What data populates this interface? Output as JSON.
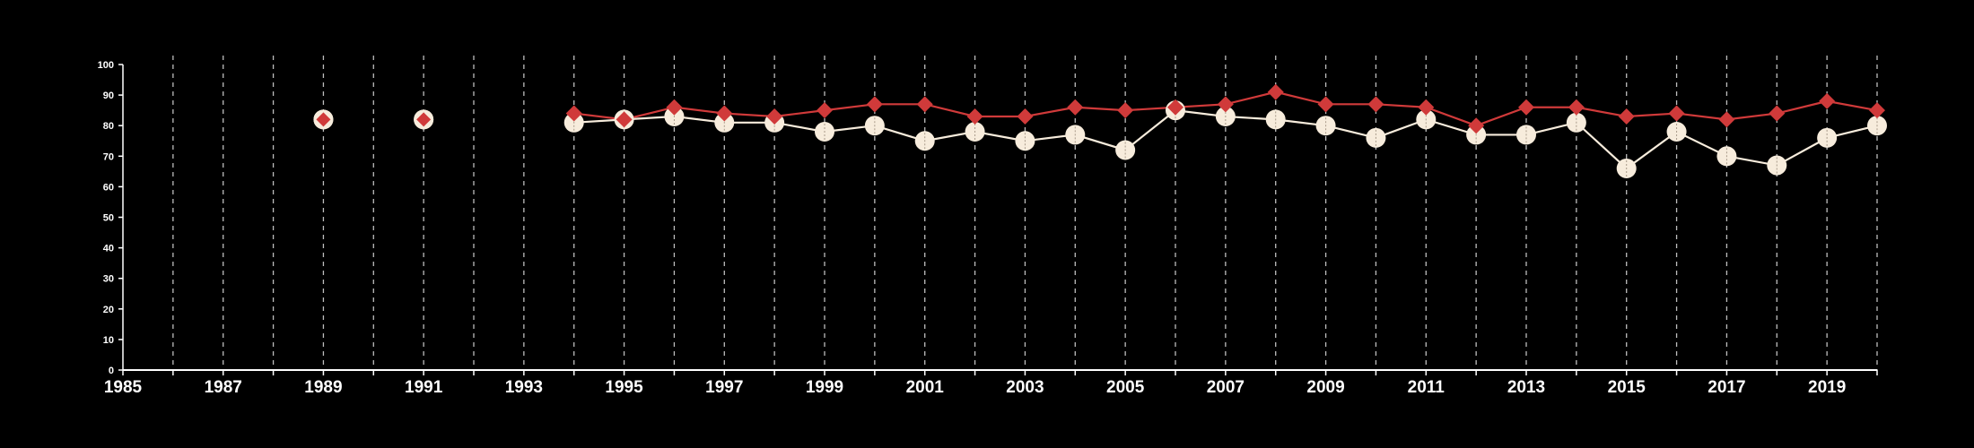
{
  "chart_data": {
    "type": "line",
    "title": "",
    "xlabel": "",
    "ylabel": "",
    "xlim": [
      1985,
      2020
    ],
    "ylim": [
      0,
      100
    ],
    "x_tick_labels": [
      "1985",
      "1987",
      "1989",
      "1991",
      "1993",
      "1995",
      "1997",
      "1999",
      "2001",
      "2003",
      "2005",
      "2007",
      "2009",
      "2011",
      "2013",
      "2015",
      "2017",
      "2019"
    ],
    "y_tick_labels": [
      "0",
      "10",
      "20",
      "30",
      "40",
      "50",
      "60",
      "70",
      "80",
      "90",
      "100"
    ],
    "grid": "vertical dashed lines at every year",
    "series": [
      {
        "color": "#d03a3a",
        "marker": "diamond",
        "points": [
          [
            1989,
            82
          ],
          [
            1991,
            82
          ],
          [
            1994,
            84
          ],
          [
            1995,
            82
          ],
          [
            1996,
            86
          ],
          [
            1997,
            84
          ],
          [
            1998,
            83
          ],
          [
            1999,
            85
          ],
          [
            2000,
            87
          ],
          [
            2001,
            87
          ],
          [
            2002,
            83
          ],
          [
            2003,
            83
          ],
          [
            2004,
            86
          ],
          [
            2005,
            85
          ],
          [
            2006,
            86
          ],
          [
            2007,
            87
          ],
          [
            2008,
            91
          ],
          [
            2009,
            87
          ],
          [
            2010,
            87
          ],
          [
            2011,
            86
          ],
          [
            2012,
            80
          ],
          [
            2013,
            86
          ],
          [
            2014,
            86
          ],
          [
            2015,
            83
          ],
          [
            2016,
            84
          ],
          [
            2017,
            82
          ],
          [
            2018,
            84
          ],
          [
            2019,
            88
          ],
          [
            2020,
            85
          ]
        ]
      },
      {
        "color": "#f7ecdc",
        "marker": "circle",
        "points": [
          [
            1989,
            82
          ],
          [
            1991,
            82
          ],
          [
            1994,
            81
          ],
          [
            1995,
            82
          ],
          [
            1996,
            83
          ],
          [
            1997,
            81
          ],
          [
            1998,
            81
          ],
          [
            1999,
            78
          ],
          [
            2000,
            80
          ],
          [
            2001,
            75
          ],
          [
            2002,
            78
          ],
          [
            2003,
            75
          ],
          [
            2004,
            77
          ],
          [
            2005,
            72
          ],
          [
            2006,
            85
          ],
          [
            2007,
            83
          ],
          [
            2008,
            82
          ],
          [
            2009,
            80
          ],
          [
            2010,
            76
          ],
          [
            2011,
            82
          ],
          [
            2012,
            77
          ],
          [
            2013,
            77
          ],
          [
            2014,
            81
          ],
          [
            2015,
            66
          ],
          [
            2016,
            78
          ],
          [
            2017,
            70
          ],
          [
            2018,
            67
          ],
          [
            2019,
            76
          ],
          [
            2020,
            80
          ]
        ]
      }
    ]
  }
}
